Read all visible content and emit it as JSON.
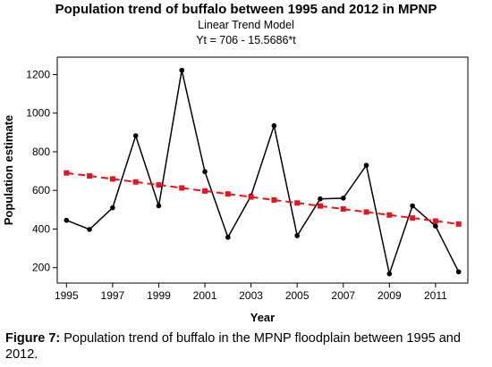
{
  "chart_data": {
    "type": "line",
    "title": "Population trend of buffalo between 1995 and 2012 in MPNP",
    "subtitle": "Linear Trend Model",
    "equation": "Yt = 706 - 15.5686*t",
    "xlabel": "Year",
    "ylabel": "Population estimate",
    "x": [
      1995,
      1996,
      1997,
      1998,
      1999,
      2000,
      2001,
      2002,
      2003,
      2004,
      2005,
      2006,
      2007,
      2008,
      2009,
      2010,
      2011,
      2012
    ],
    "xlim": [
      1994.6,
      2012.4
    ],
    "ylim": [
      120,
      1290
    ],
    "xticks": [
      1995,
      1997,
      1999,
      2001,
      2003,
      2005,
      2007,
      2009,
      2011
    ],
    "yticks": [
      200,
      400,
      600,
      800,
      1000,
      1200
    ],
    "series": [
      {
        "kind": "actual",
        "color": "#000000",
        "marker": "circle",
        "line": "solid",
        "values": [
          445,
          398,
          510,
          883,
          520,
          1222,
          697,
          357,
          572,
          935,
          365,
          556,
          560,
          730,
          168,
          520,
          415,
          178
        ]
      },
      {
        "kind": "fits",
        "color": "#e8141b",
        "marker": "square",
        "line": "dashed",
        "values": [
          690.4,
          674.9,
          659.3,
          643.7,
          628.2,
          612.6,
          597.0,
          581.5,
          565.9,
          550.3,
          534.8,
          519.2,
          503.6,
          488.0,
          472.5,
          456.9,
          441.3,
          425.8
        ]
      }
    ],
    "grid": false
  },
  "caption": {
    "label": "Figure 7:",
    "text": " Population trend of buffalo in the MPNP floodplain between 1995 and 2012."
  }
}
